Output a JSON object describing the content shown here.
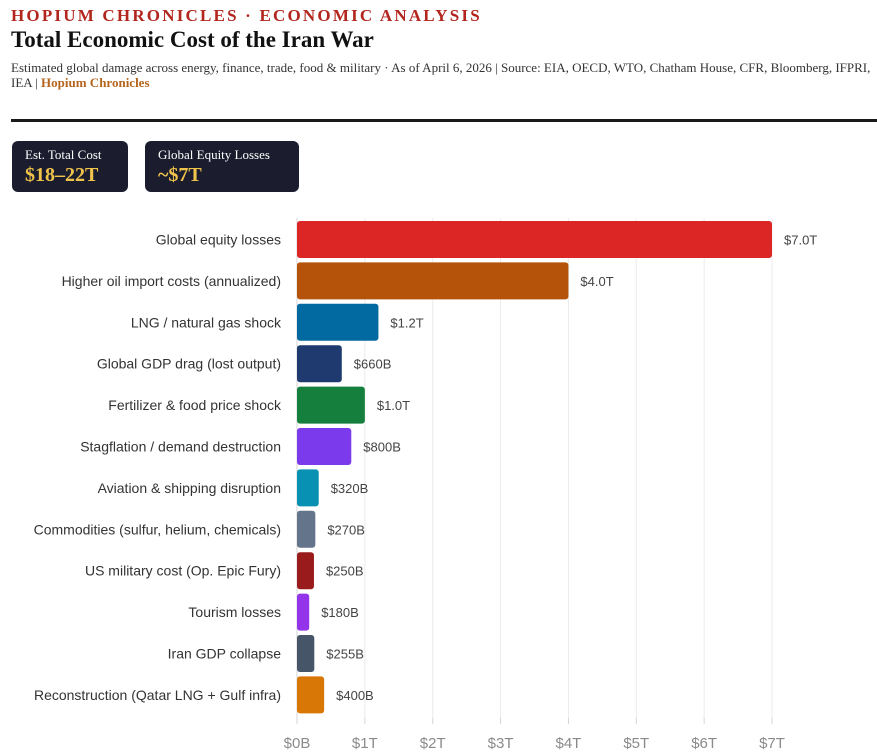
{
  "header": {
    "kicker": "HOPIUM CHRONICLES · ECONOMIC ANALYSIS",
    "title": "Total Economic Cost of the Iran War",
    "subtitle": "Estimated global damage across energy, finance, trade, food & military · As of April 6, 2026  |  Source: EIA, OECD, WTO, Chatham House, CFR, Bloomberg, IFPRI, IEA  |  ",
    "brand": "Hopium Chronicles"
  },
  "stats": {
    "total_cost_label": "Est. Total Cost",
    "total_cost_value": "$18–22T",
    "equity_label": "Global Equity Losses",
    "equity_value": "~$7T"
  },
  "colors": {
    "bars": [
      "#dc2626",
      "#b45309",
      "#0369a1",
      "#1e3a6e",
      "#15803d",
      "#7c3aed",
      "#0891b2",
      "#64748b",
      "#991b1b",
      "#9333ea",
      "#475569",
      "#d97706"
    ]
  },
  "chart_data": {
    "type": "bar",
    "orientation": "horizontal",
    "title": "Total Economic Cost of the Iran War",
    "unit": "USD trillions",
    "categories": [
      "Global equity losses",
      "Higher oil import costs (annualized)",
      "LNG / natural gas shock",
      "Global GDP drag (lost output)",
      "Fertilizer & food price shock",
      "Stagflation / demand destruction",
      "Aviation & shipping disruption",
      "Commodities (sulfur, helium, chemicals)",
      "US military cost (Op. Epic Fury)",
      "Tourism losses",
      "Iran GDP collapse",
      "Reconstruction (Qatar LNG + Gulf infra)"
    ],
    "values": [
      7.0,
      4.0,
      1.2,
      0.66,
      1.0,
      0.8,
      0.32,
      0.27,
      0.25,
      0.18,
      0.255,
      0.4
    ],
    "value_labels": [
      "$7.0T",
      "$4.0T",
      "$1.2T",
      "$660B",
      "$1.0T",
      "$800B",
      "$320B",
      "$270B",
      "$250B",
      "$180B",
      "$255B",
      "$400B"
    ],
    "xlim": [
      0,
      7
    ],
    "xticks": [
      0,
      1,
      2,
      3,
      4,
      5,
      6,
      7
    ],
    "xtick_labels": [
      "$0B",
      "$1T",
      "$2T",
      "$3T",
      "$4T",
      "$5T",
      "$6T",
      "$7T"
    ],
    "grid": true
  }
}
